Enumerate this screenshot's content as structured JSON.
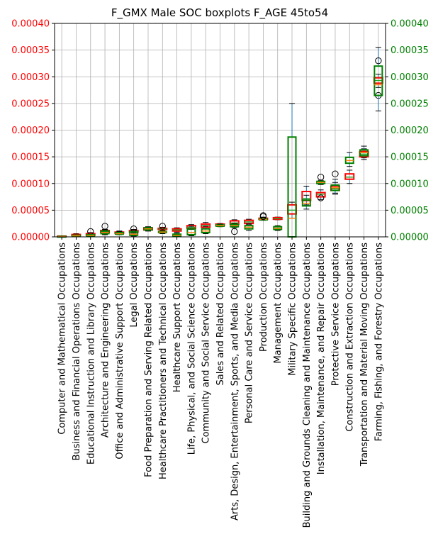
{
  "chart_data": {
    "type": "boxplot",
    "title": "F_GMX Male SOC boxplots F_AGE 45to54",
    "ylim": [
      0,
      0.0004
    ],
    "yticks": [
      "0.00000",
      "0.00005",
      "0.00010",
      "0.00015",
      "0.00020",
      "0.00025",
      "0.00030",
      "0.00035",
      "0.00040"
    ],
    "grid": true,
    "colors": {
      "red_series": "#ff0000",
      "green_series": "#008000",
      "whisker": "#1f77b4",
      "median_red": "#2ca02c",
      "median_green": "#ff7f0e"
    },
    "categories": [
      "Computer and Mathematical Occupations",
      "Business and Financial Operations Occupations",
      "Educational Instruction and Library Occupations",
      "Architecture and Engineering Occupations",
      "Office and Administrative Support Occupations",
      "Legal Occupations",
      "Food Preparation and Serving Related Occupations",
      "Healthcare Practitioners and Technical Occupations",
      "Healthcare Support Occupations",
      "Life, Physical, and Social Science Occupations",
      "Community and Social Service Occupations",
      "Sales and Related Occupations",
      "Arts, Design, Entertainment, Sports, and Media Occupations",
      "Personal Care and Service Occupations",
      "Production Occupations",
      "Management Occupations",
      "Military Specific Occupations",
      "Building and Grounds Cleaning and Maintenance Occupations",
      "Installation, Maintenance, and Repair Occupations",
      "Protective Service Occupations",
      "Construction and Extraction Occupations",
      "Transportation and Material Moving Occupations",
      "Farming, Fishing, and Forestry Occupations"
    ],
    "series": [
      {
        "axis": "left",
        "boxes": [
          {
            "wlo": 0.0,
            "q1": 5e-07,
            "med": 1e-06,
            "q3": 1.5e-06,
            "whi": 2e-06,
            "fliers": []
          },
          {
            "wlo": 1e-06,
            "q1": 2.5e-06,
            "med": 3e-06,
            "q3": 4.5e-06,
            "whi": 6e-06,
            "fliers": []
          },
          {
            "wlo": 2e-06,
            "q1": 3.5e-06,
            "med": 4.5e-06,
            "q3": 6e-06,
            "whi": 8e-06,
            "fliers": [
              1e-05
            ]
          },
          {
            "wlo": 6e-06,
            "q1": 8e-06,
            "med": 1e-05,
            "q3": 1.2e-05,
            "whi": 1.4e-05,
            "fliers": [
              2e-05
            ]
          },
          {
            "wlo": 5e-06,
            "q1": 7e-06,
            "med": 8e-06,
            "q3": 9e-06,
            "whi": 1.1e-05,
            "fliers": []
          },
          {
            "wlo": 7e-06,
            "q1": 9e-06,
            "med": 1.1e-05,
            "q3": 1.2e-05,
            "whi": 1.4e-05,
            "fliers": [
              1.5e-05
            ]
          },
          {
            "wlo": 1.1e-05,
            "q1": 1.3e-05,
            "med": 1.5e-05,
            "q3": 1.7e-05,
            "whi": 1.9e-05,
            "fliers": []
          },
          {
            "wlo": 1.3e-05,
            "q1": 1.4e-05,
            "med": 1.5e-05,
            "q3": 1.6e-05,
            "whi": 1.8e-05,
            "fliers": [
              2e-05
            ]
          },
          {
            "wlo": 9e-06,
            "q1": 1.1e-05,
            "med": 1.3e-05,
            "q3": 1.5e-05,
            "whi": 1.7e-05,
            "fliers": []
          },
          {
            "wlo": 1.4e-05,
            "q1": 1.6e-05,
            "med": 1.8e-05,
            "q3": 2.1e-05,
            "whi": 2.3e-05,
            "fliers": []
          },
          {
            "wlo": 1.5e-05,
            "q1": 1.8e-05,
            "med": 2.1e-05,
            "q3": 2.4e-05,
            "whi": 2.7e-05,
            "fliers": []
          },
          {
            "wlo": 2.1e-05,
            "q1": 2.2e-05,
            "med": 2.3e-05,
            "q3": 2.4e-05,
            "whi": 2.5e-05,
            "fliers": []
          },
          {
            "wlo": 2.2e-05,
            "q1": 2.4e-05,
            "med": 2.6e-05,
            "q3": 3e-05,
            "whi": 3.2e-05,
            "fliers": []
          },
          {
            "wlo": 2.3e-05,
            "q1": 2.5e-05,
            "med": 2.8e-05,
            "q3": 3.1e-05,
            "whi": 3.3e-05,
            "fliers": []
          },
          {
            "wlo": 3.2e-05,
            "q1": 3.3e-05,
            "med": 3.4e-05,
            "q3": 3.5e-05,
            "whi": 3.7e-05,
            "fliers": [
              4e-05
            ]
          },
          {
            "wlo": 3.2e-05,
            "q1": 3.3e-05,
            "med": 3.4e-05,
            "q3": 3.6e-05,
            "whi": 3.7e-05,
            "fliers": []
          },
          {
            "wlo": 3.5e-05,
            "q1": 4.3e-05,
            "med": 5e-05,
            "q3": 6e-05,
            "whi": 6.5e-05,
            "fliers": []
          },
          {
            "wlo": 6e-05,
            "q1": 6.8e-05,
            "med": 7.2e-05,
            "q3": 8.5e-05,
            "whi": 9.5e-05,
            "fliers": []
          },
          {
            "wlo": 7e-05,
            "q1": 7.5e-05,
            "med": 8e-05,
            "q3": 8.3e-05,
            "whi": 8.8e-05,
            "fliers": [
              7.3e-05,
              0.000112
            ]
          },
          {
            "wlo": 8.2e-05,
            "q1": 8.7e-05,
            "med": 9e-05,
            "q3": 9.5e-05,
            "whi": 0.000108,
            "fliers": [
              0.000118
            ]
          },
          {
            "wlo": 0.0001,
            "q1": 0.000108,
            "med": 0.000112,
            "q3": 0.000118,
            "whi": 0.000125,
            "fliers": []
          },
          {
            "wlo": 0.000145,
            "q1": 0.00015,
            "med": 0.000155,
            "q3": 0.00016,
            "whi": 0.000165,
            "fliers": []
          },
          {
            "wlo": 0.00028,
            "q1": 0.000288,
            "med": 0.000293,
            "q3": 0.000298,
            "whi": 0.000305,
            "fliers": [
              0.000265
            ]
          }
        ]
      },
      {
        "axis": "right",
        "boxes": [
          {
            "wlo": 0.0,
            "q1": 2e-07,
            "med": 5e-07,
            "q3": 1e-06,
            "whi": 1.5e-06,
            "fliers": []
          },
          {
            "wlo": 5e-07,
            "q1": 1.5e-06,
            "med": 2e-06,
            "q3": 3e-06,
            "whi": 4e-06,
            "fliers": []
          },
          {
            "wlo": 1e-06,
            "q1": 2e-06,
            "med": 3e-06,
            "q3": 4e-06,
            "whi": 5e-06,
            "fliers": []
          },
          {
            "wlo": 4e-06,
            "q1": 6e-06,
            "med": 8e-06,
            "q3": 1.1e-05,
            "whi": 1.3e-05,
            "fliers": []
          },
          {
            "wlo": 4e-06,
            "q1": 5e-06,
            "med": 6e-06,
            "q3": 8e-06,
            "whi": 1e-05,
            "fliers": []
          },
          {
            "wlo": 1.5e-06,
            "q1": 3e-06,
            "med": 5e-06,
            "q3": 9e-06,
            "whi": 1.2e-05,
            "fliers": []
          },
          {
            "wlo": 1.1e-05,
            "q1": 1.3e-05,
            "med": 1.5e-05,
            "q3": 1.7e-05,
            "whi": 1.8e-05,
            "fliers": []
          },
          {
            "wlo": 6e-06,
            "q1": 8e-06,
            "med": 9e-06,
            "q3": 1e-05,
            "whi": 1.2e-05,
            "fliers": []
          },
          {
            "wlo": 0.0,
            "q1": 1e-06,
            "med": 3e-06,
            "q3": 5e-06,
            "whi": 7e-06,
            "fliers": []
          },
          {
            "wlo": 2e-06,
            "q1": 4e-06,
            "med": 8e-06,
            "q3": 1.5e-05,
            "whi": 2e-05,
            "fliers": []
          },
          {
            "wlo": 6e-06,
            "q1": 8e-06,
            "med": 1.1e-05,
            "q3": 1.5e-05,
            "whi": 2e-05,
            "fliers": []
          },
          {
            "wlo": 1.9e-05,
            "q1": 2e-05,
            "med": 2.1e-05,
            "q3": 2.2e-05,
            "whi": 2.4e-05,
            "fliers": []
          },
          {
            "wlo": 1.7e-05,
            "q1": 1.9e-05,
            "med": 2.1e-05,
            "q3": 2.3e-05,
            "whi": 2.5e-05,
            "fliers": [
              1e-05
            ]
          },
          {
            "wlo": 1.2e-05,
            "q1": 1.5e-05,
            "med": 1.8e-05,
            "q3": 2.1e-05,
            "whi": 2.5e-05,
            "fliers": []
          },
          {
            "wlo": 3.1e-05,
            "q1": 3.2e-05,
            "med": 3.3e-05,
            "q3": 3.4e-05,
            "whi": 3.6e-05,
            "fliers": [
              3.8e-05
            ]
          },
          {
            "wlo": 1.2e-05,
            "q1": 1.4e-05,
            "med": 1.6e-05,
            "q3": 1.9e-05,
            "whi": 2.1e-05,
            "fliers": []
          },
          {
            "wlo": 0.0,
            "q1": 0.0,
            "med": 3.5e-05,
            "q3": 0.000187,
            "whi": 0.00025,
            "fliers": []
          },
          {
            "wlo": 5.2e-05,
            "q1": 5.8e-05,
            "med": 6.3e-05,
            "q3": 6.9e-05,
            "whi": 7.8e-05,
            "fliers": []
          },
          {
            "wlo": 9.8e-05,
            "q1": 0.0001,
            "med": 0.000102,
            "q3": 0.000104,
            "whi": 0.000106,
            "fliers": []
          },
          {
            "wlo": 8e-05,
            "q1": 8.7e-05,
            "med": 9.2e-05,
            "q3": 9.7e-05,
            "whi": 0.000102,
            "fliers": []
          },
          {
            "wlo": 0.000132,
            "q1": 0.000138,
            "med": 0.000143,
            "q3": 0.000149,
            "whi": 0.000158,
            "fliers": []
          },
          {
            "wlo": 0.000148,
            "q1": 0.000152,
            "med": 0.000158,
            "q3": 0.000163,
            "whi": 0.00017,
            "fliers": []
          },
          {
            "wlo": 0.000236,
            "q1": 0.000265,
            "med": 0.000285,
            "q3": 0.00032,
            "whi": 0.000355,
            "fliers": [
              0.00033
            ]
          }
        ]
      }
    ]
  }
}
